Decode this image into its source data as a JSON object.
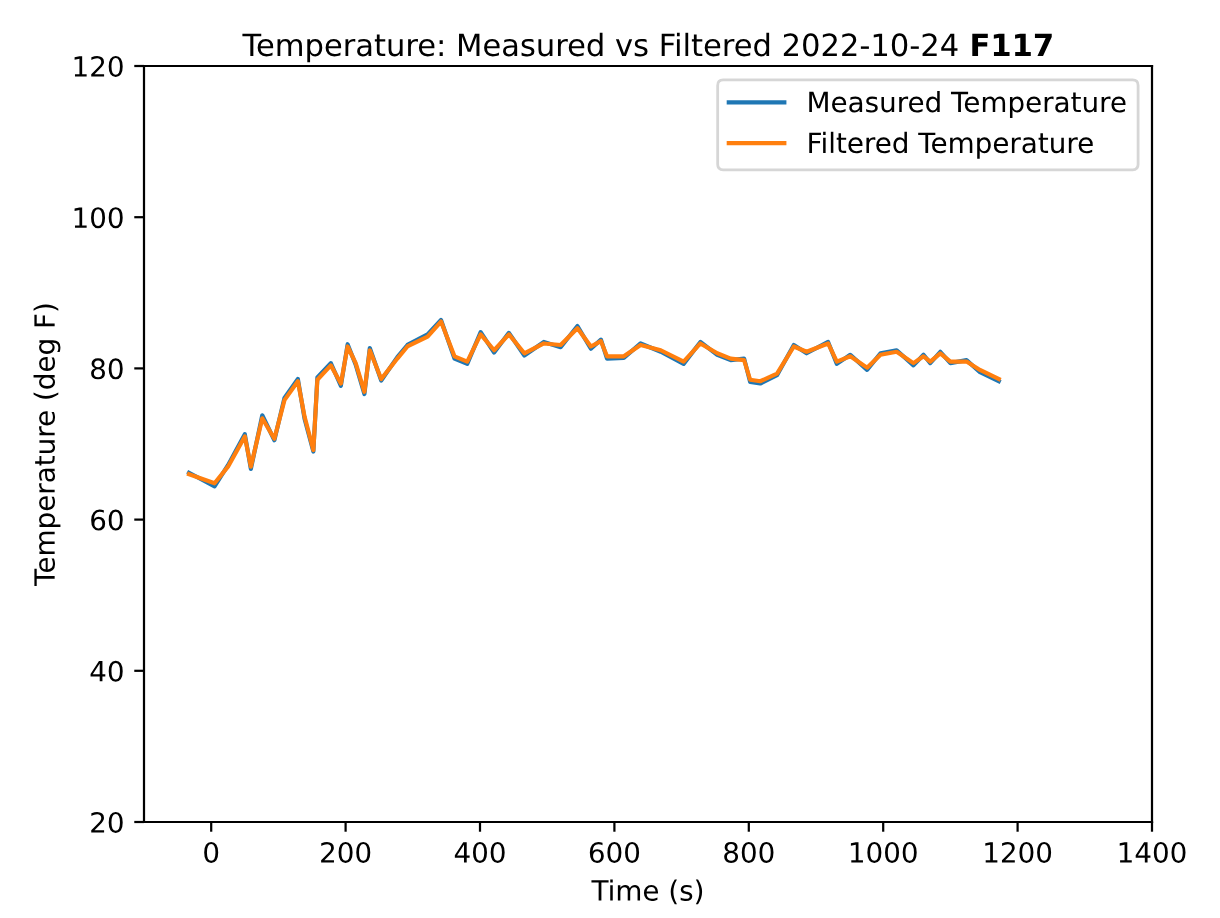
{
  "chart_data": {
    "type": "line",
    "title": "Temperature: Measured vs Filtered 2022-10-24 F117",
    "xlabel": "Time (s)",
    "ylabel": "Temperature (deg F)",
    "xlim": [
      -100,
      1400
    ],
    "xticks": [
      0,
      200,
      400,
      600,
      800,
      1000,
      1200,
      1400
    ],
    "ylim": [
      20,
      120
    ],
    "yticks": [
      20,
      40,
      60,
      80,
      100,
      120
    ],
    "grid": false,
    "legend": "top right",
    "x": [
      -33,
      5,
      25,
      50,
      59,
      76,
      94,
      109,
      129,
      139,
      152,
      158,
      178,
      193,
      203,
      215,
      228,
      236,
      253,
      277,
      292,
      322,
      342,
      362,
      381,
      401,
      421,
      443,
      466,
      495,
      520,
      545,
      565,
      580,
      589,
      614,
      639,
      669,
      703,
      728,
      753,
      773,
      793,
      802,
      817,
      842,
      867,
      886,
      918,
      931,
      951,
      976,
      996,
      1020,
      1045,
      1060,
      1070,
      1085,
      1100,
      1124,
      1144,
      1172
    ],
    "series": [
      {
        "name": "Measured Temperature",
        "color": "#1f77b4",
        "values": [
          66.2,
          64.4,
          67.2,
          71.3,
          66.7,
          73.8,
          70.5,
          76.1,
          78.6,
          73.3,
          69.0,
          78.8,
          80.7,
          77.7,
          83.2,
          80.5,
          76.6,
          82.7,
          78.4,
          81.5,
          83.1,
          84.5,
          86.4,
          81.3,
          80.6,
          84.8,
          82.1,
          84.7,
          81.7,
          83.5,
          82.8,
          85.6,
          82.6,
          83.8,
          81.3,
          81.4,
          83.3,
          82.2,
          80.6,
          83.5,
          81.8,
          81.1,
          81.3,
          78.2,
          78.0,
          79.1,
          83.1,
          82.0,
          83.5,
          80.6,
          81.8,
          79.8,
          82.0,
          82.4,
          80.4,
          81.8,
          80.7,
          82.2,
          80.7,
          81.1,
          79.5,
          78.3
        ]
      },
      {
        "name": "Filtered Temperature",
        "color": "#ff7f0e",
        "values": [
          66.0,
          64.8,
          67.0,
          71.0,
          67.0,
          73.4,
          70.7,
          75.8,
          78.3,
          73.6,
          69.2,
          78.5,
          80.4,
          78.0,
          82.9,
          80.7,
          76.9,
          82.4,
          78.6,
          81.3,
          82.9,
          84.2,
          86.2,
          81.6,
          80.9,
          84.5,
          82.4,
          84.5,
          82.0,
          83.3,
          83.1,
          85.3,
          82.9,
          83.6,
          81.6,
          81.6,
          83.1,
          82.4,
          80.9,
          83.3,
          82.0,
          81.3,
          81.1,
          78.5,
          78.3,
          79.3,
          82.9,
          82.2,
          83.3,
          80.9,
          81.6,
          80.1,
          81.8,
          82.2,
          80.7,
          81.6,
          80.9,
          82.0,
          80.9,
          80.9,
          79.8,
          78.6
        ]
      }
    ]
  }
}
